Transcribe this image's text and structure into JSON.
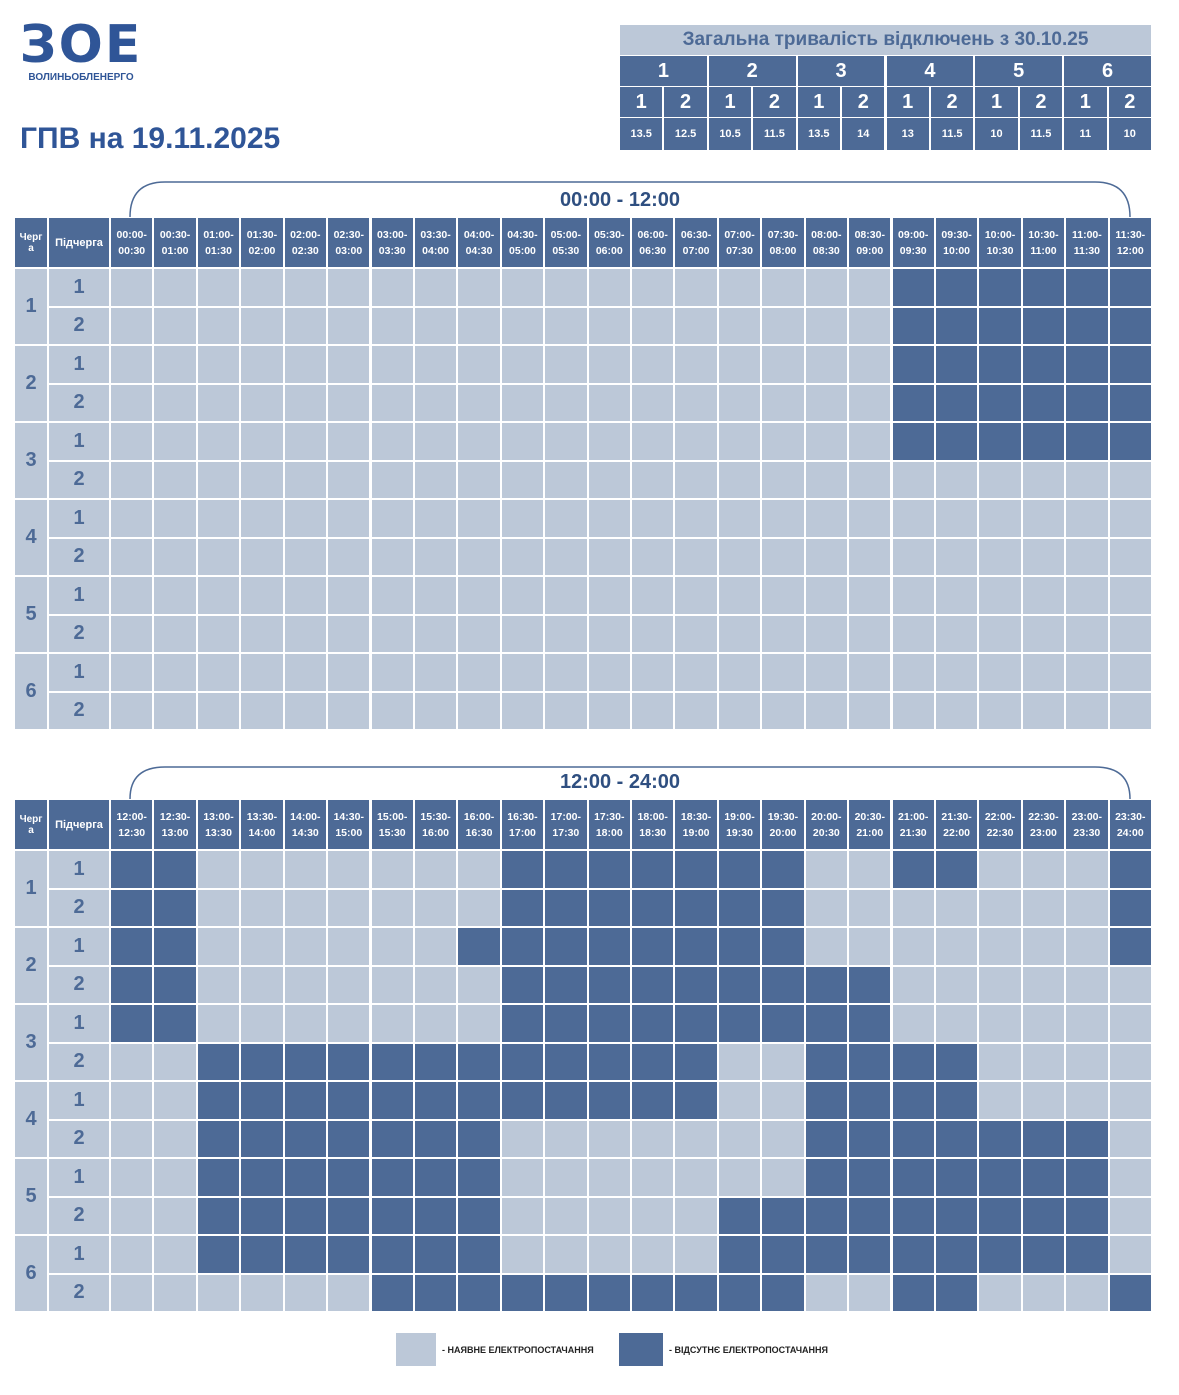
{
  "logo": {
    "mark": "ЗОЕ",
    "name": "ВОЛИНЬОБЛЕНЕРГО"
  },
  "title": "ГПВ на 19.11.2025",
  "summary": {
    "title": "Загальна тривалість відключень з 30.10.25",
    "groups": [
      {
        "label": 1,
        "subgroups": [
          1,
          2
        ],
        "hours": [
          13.5,
          12.5
        ]
      },
      {
        "label": 2,
        "subgroups": [
          1,
          2
        ],
        "hours": [
          10.5,
          11.5
        ]
      },
      {
        "label": 3,
        "subgroups": [
          1,
          2
        ],
        "hours": [
          13.5,
          14
        ]
      },
      {
        "label": 4,
        "subgroups": [
          1,
          2
        ],
        "hours": [
          13,
          11.5
        ]
      },
      {
        "label": 5,
        "subgroups": [
          1,
          2
        ],
        "hours": [
          10,
          11.5
        ]
      },
      {
        "label": 6,
        "subgroups": [
          1,
          2
        ],
        "hours": [
          11,
          10
        ]
      }
    ]
  },
  "schedules": [
    {
      "period": "00:00 - 12:00",
      "queue_header": "Черга",
      "subqueue_header": "Підчерга",
      "slots": [
        "00:00-00:30",
        "00:30-01:00",
        "01:00-01:30",
        "01:30-02:00",
        "02:00-02:30",
        "02:30-03:00",
        "03:00-03:30",
        "03:30-04:00",
        "04:00-04:30",
        "04:30-05:00",
        "05:00-05:30",
        "05:30-06:00",
        "06:00-06:30",
        "06:30-07:00",
        "07:00-07:30",
        "07:30-08:00",
        "08:00-08:30",
        "08:30-09:00",
        "09:00-09:30",
        "09:30-10:00",
        "10:00-10:30",
        "10:30-11:00",
        "11:00-11:30",
        "11:30-12:00"
      ],
      "queues": [
        {
          "label": 1,
          "subqueues": [
            {
              "label": 1,
              "outage": [
                0,
                0,
                0,
                0,
                0,
                0,
                0,
                0,
                0,
                0,
                0,
                0,
                0,
                0,
                0,
                0,
                0,
                0,
                1,
                1,
                1,
                1,
                1,
                1
              ]
            },
            {
              "label": 2,
              "outage": [
                0,
                0,
                0,
                0,
                0,
                0,
                0,
                0,
                0,
                0,
                0,
                0,
                0,
                0,
                0,
                0,
                0,
                0,
                1,
                1,
                1,
                1,
                1,
                1
              ]
            }
          ]
        },
        {
          "label": 2,
          "subqueues": [
            {
              "label": 1,
              "outage": [
                0,
                0,
                0,
                0,
                0,
                0,
                0,
                0,
                0,
                0,
                0,
                0,
                0,
                0,
                0,
                0,
                0,
                0,
                1,
                1,
                1,
                1,
                1,
                1
              ]
            },
            {
              "label": 2,
              "outage": [
                0,
                0,
                0,
                0,
                0,
                0,
                0,
                0,
                0,
                0,
                0,
                0,
                0,
                0,
                0,
                0,
                0,
                0,
                1,
                1,
                1,
                1,
                1,
                1
              ]
            }
          ]
        },
        {
          "label": 3,
          "subqueues": [
            {
              "label": 1,
              "outage": [
                0,
                0,
                0,
                0,
                0,
                0,
                0,
                0,
                0,
                0,
                0,
                0,
                0,
                0,
                0,
                0,
                0,
                0,
                1,
                1,
                1,
                1,
                1,
                1
              ]
            },
            {
              "label": 2,
              "outage": [
                0,
                0,
                0,
                0,
                0,
                0,
                0,
                0,
                0,
                0,
                0,
                0,
                0,
                0,
                0,
                0,
                0,
                0,
                0,
                0,
                0,
                0,
                0,
                0
              ]
            }
          ]
        },
        {
          "label": 4,
          "subqueues": [
            {
              "label": 1,
              "outage": [
                0,
                0,
                0,
                0,
                0,
                0,
                0,
                0,
                0,
                0,
                0,
                0,
                0,
                0,
                0,
                0,
                0,
                0,
                0,
                0,
                0,
                0,
                0,
                0
              ]
            },
            {
              "label": 2,
              "outage": [
                0,
                0,
                0,
                0,
                0,
                0,
                0,
                0,
                0,
                0,
                0,
                0,
                0,
                0,
                0,
                0,
                0,
                0,
                0,
                0,
                0,
                0,
                0,
                0
              ]
            }
          ]
        },
        {
          "label": 5,
          "subqueues": [
            {
              "label": 1,
              "outage": [
                0,
                0,
                0,
                0,
                0,
                0,
                0,
                0,
                0,
                0,
                0,
                0,
                0,
                0,
                0,
                0,
                0,
                0,
                0,
                0,
                0,
                0,
                0,
                0
              ]
            },
            {
              "label": 2,
              "outage": [
                0,
                0,
                0,
                0,
                0,
                0,
                0,
                0,
                0,
                0,
                0,
                0,
                0,
                0,
                0,
                0,
                0,
                0,
                0,
                0,
                0,
                0,
                0,
                0
              ]
            }
          ]
        },
        {
          "label": 6,
          "subqueues": [
            {
              "label": 1,
              "outage": [
                0,
                0,
                0,
                0,
                0,
                0,
                0,
                0,
                0,
                0,
                0,
                0,
                0,
                0,
                0,
                0,
                0,
                0,
                0,
                0,
                0,
                0,
                0,
                0
              ]
            },
            {
              "label": 2,
              "outage": [
                0,
                0,
                0,
                0,
                0,
                0,
                0,
                0,
                0,
                0,
                0,
                0,
                0,
                0,
                0,
                0,
                0,
                0,
                0,
                0,
                0,
                0,
                0,
                0
              ]
            }
          ]
        }
      ]
    },
    {
      "period": "12:00 - 24:00",
      "queue_header": "Черга",
      "subqueue_header": "Підчерга",
      "slots": [
        "12:00-12:30",
        "12:30-13:00",
        "13:00-13:30",
        "13:30-14:00",
        "14:00-14:30",
        "14:30-15:00",
        "15:00-15:30",
        "15:30-16:00",
        "16:00-16:30",
        "16:30-17:00",
        "17:00-17:30",
        "17:30-18:00",
        "18:00-18:30",
        "18:30-19:00",
        "19:00-19:30",
        "19:30-20:00",
        "20:00-20:30",
        "20:30-21:00",
        "21:00-21:30",
        "21:30-22:00",
        "22:00-22:30",
        "22:30-23:00",
        "23:00-23:30",
        "23:30-24:00"
      ],
      "queues": [
        {
          "label": 1,
          "subqueues": [
            {
              "label": 1,
              "outage": [
                1,
                1,
                0,
                0,
                0,
                0,
                0,
                0,
                0,
                1,
                1,
                1,
                1,
                1,
                1,
                1,
                0,
                0,
                1,
                1,
                0,
                0,
                0,
                1
              ]
            },
            {
              "label": 2,
              "outage": [
                1,
                1,
                0,
                0,
                0,
                0,
                0,
                0,
                0,
                1,
                1,
                1,
                1,
                1,
                1,
                1,
                0,
                0,
                0,
                0,
                0,
                0,
                0,
                1
              ]
            }
          ]
        },
        {
          "label": 2,
          "subqueues": [
            {
              "label": 1,
              "outage": [
                1,
                1,
                0,
                0,
                0,
                0,
                0,
                0,
                1,
                1,
                1,
                1,
                1,
                1,
                1,
                1,
                0,
                0,
                0,
                0,
                0,
                0,
                0,
                1
              ]
            },
            {
              "label": 2,
              "outage": [
                1,
                1,
                0,
                0,
                0,
                0,
                0,
                0,
                0,
                1,
                1,
                1,
                1,
                1,
                1,
                1,
                1,
                1,
                0,
                0,
                0,
                0,
                0,
                0
              ]
            }
          ]
        },
        {
          "label": 3,
          "subqueues": [
            {
              "label": 1,
              "outage": [
                1,
                1,
                0,
                0,
                0,
                0,
                0,
                0,
                0,
                1,
                1,
                1,
                1,
                1,
                1,
                1,
                1,
                1,
                0,
                0,
                0,
                0,
                0,
                0
              ]
            },
            {
              "label": 2,
              "outage": [
                0,
                0,
                1,
                1,
                1,
                1,
                1,
                1,
                1,
                1,
                1,
                1,
                1,
                1,
                0,
                0,
                1,
                1,
                1,
                1,
                0,
                0,
                0,
                0
              ]
            }
          ]
        },
        {
          "label": 4,
          "subqueues": [
            {
              "label": 1,
              "outage": [
                0,
                0,
                1,
                1,
                1,
                1,
                1,
                1,
                1,
                1,
                1,
                1,
                1,
                1,
                0,
                0,
                1,
                1,
                1,
                1,
                0,
                0,
                0,
                0
              ]
            },
            {
              "label": 2,
              "outage": [
                0,
                0,
                1,
                1,
                1,
                1,
                1,
                1,
                1,
                0,
                0,
                0,
                0,
                0,
                0,
                0,
                1,
                1,
                1,
                1,
                1,
                1,
                1,
                0
              ]
            }
          ]
        },
        {
          "label": 5,
          "subqueues": [
            {
              "label": 1,
              "outage": [
                0,
                0,
                1,
                1,
                1,
                1,
                1,
                1,
                1,
                0,
                0,
                0,
                0,
                0,
                0,
                0,
                1,
                1,
                1,
                1,
                1,
                1,
                1,
                0
              ]
            },
            {
              "label": 2,
              "outage": [
                0,
                0,
                1,
                1,
                1,
                1,
                1,
                1,
                1,
                0,
                0,
                0,
                0,
                0,
                1,
                1,
                1,
                1,
                1,
                1,
                1,
                1,
                1,
                0
              ]
            }
          ]
        },
        {
          "label": 6,
          "subqueues": [
            {
              "label": 1,
              "outage": [
                0,
                0,
                1,
                1,
                1,
                1,
                1,
                1,
                1,
                0,
                0,
                0,
                0,
                0,
                1,
                1,
                1,
                1,
                1,
                1,
                1,
                1,
                1,
                0
              ]
            },
            {
              "label": 2,
              "outage": [
                0,
                0,
                0,
                0,
                0,
                0,
                1,
                1,
                1,
                1,
                1,
                1,
                1,
                1,
                1,
                1,
                0,
                0,
                1,
                1,
                0,
                0,
                0,
                1
              ]
            }
          ]
        }
      ]
    }
  ],
  "legend": [
    {
      "label": "- НАЯВНЕ ЕЛЕКТРОПОСТАЧАННЯ",
      "color": "#bcc8d8"
    },
    {
      "label": "- ВІДСУТНЄ ЕЛЕКТРОПОСТАЧАННЯ",
      "color": "#4d6a96"
    }
  ]
}
